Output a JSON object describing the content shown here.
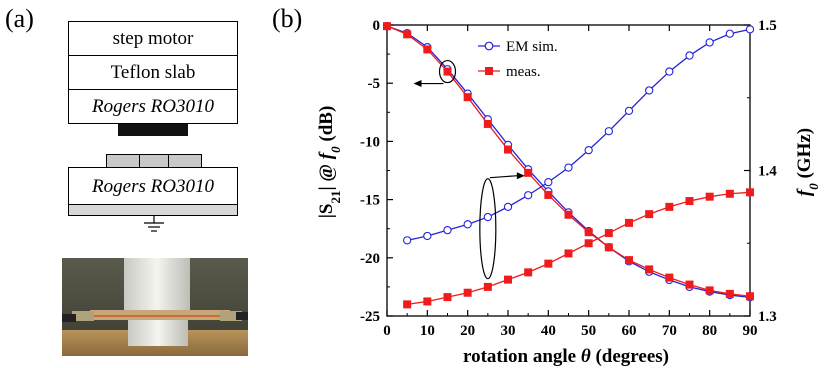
{
  "panels": {
    "a_label": "(a)",
    "b_label": "(b)"
  },
  "schematic": {
    "layers": [
      "step motor",
      "Teflon slab",
      "Rogers RO3010"
    ],
    "bottom_layer": "Rogers RO3010",
    "ground_icon": "ground-symbol-icon",
    "photo": "rotation-setup-photo"
  },
  "chart_data": {
    "type": "line",
    "xlabel": "rotation angle θ (degrees)",
    "xlabel_parts": {
      "main": "rotation angle ",
      "symbol": "θ",
      "unit": " (degrees)"
    },
    "ylabel_left_parts": {
      "pre": "|S",
      "sub": "21",
      "mid": "| @ ",
      "f": "f",
      "fsub": "0",
      "unit": " (dB)"
    },
    "ylabel_right_parts": {
      "f": "f",
      "fsub": "0",
      "unit": " (GHz)"
    },
    "xlim": [
      0,
      90
    ],
    "x_ticks": [
      0,
      10,
      20,
      30,
      40,
      50,
      60,
      70,
      80,
      90
    ],
    "ylim_left": [
      -25,
      0
    ],
    "y_ticks_left": [
      0,
      -5,
      -10,
      -15,
      -20,
      -25
    ],
    "ylim_right": [
      1.3,
      1.5
    ],
    "y_ticks_right": [
      1.3,
      1.4,
      1.5
    ],
    "legend": {
      "placement": "top-center",
      "entries": [
        "EM sim.",
        "meas."
      ]
    },
    "colors": {
      "sim": "#2424d8",
      "meas": "#ee1c1c"
    },
    "series": [
      {
        "name": "EM sim.",
        "axis": "left",
        "x": [
          0,
          5,
          10,
          15,
          20,
          25,
          30,
          35,
          40,
          45,
          50,
          55,
          60,
          65,
          70,
          75,
          80,
          85,
          90
        ],
        "y": [
          -0.1,
          -0.7,
          -1.9,
          -3.8,
          -5.9,
          -8.1,
          -10.3,
          -12.4,
          -14.3,
          -16.1,
          -17.7,
          -19.1,
          -20.3,
          -21.2,
          -21.9,
          -22.5,
          -22.9,
          -23.2,
          -23.4
        ]
      },
      {
        "name": "meas.",
        "axis": "left",
        "x": [
          0,
          5,
          10,
          15,
          20,
          25,
          30,
          35,
          40,
          45,
          50,
          55,
          60,
          65,
          70,
          75,
          80,
          85,
          90
        ],
        "y": [
          -0.1,
          -0.8,
          -2.1,
          -4.0,
          -6.2,
          -8.5,
          -10.7,
          -12.7,
          -14.6,
          -16.3,
          -17.8,
          -19.1,
          -20.2,
          -21.0,
          -21.7,
          -22.3,
          -22.8,
          -23.1,
          -23.3
        ]
      },
      {
        "name": "EM sim.",
        "axis": "right",
        "x": [
          5,
          10,
          15,
          20,
          25,
          30,
          35,
          40,
          45,
          50,
          55,
          60,
          65,
          70,
          75,
          80,
          85,
          90
        ],
        "y": [
          1.352,
          1.355,
          1.359,
          1.363,
          1.368,
          1.375,
          1.383,
          1.392,
          1.402,
          1.414,
          1.427,
          1.441,
          1.455,
          1.468,
          1.479,
          1.488,
          1.494,
          1.497
        ]
      },
      {
        "name": "meas.",
        "axis": "right",
        "x": [
          5,
          10,
          15,
          20,
          25,
          30,
          35,
          40,
          45,
          50,
          55,
          60,
          65,
          70,
          75,
          80,
          85,
          90
        ],
        "y": [
          1.308,
          1.31,
          1.313,
          1.316,
          1.32,
          1.325,
          1.33,
          1.336,
          1.343,
          1.35,
          1.357,
          1.364,
          1.37,
          1.375,
          1.379,
          1.382,
          1.384,
          1.385
        ]
      }
    ],
    "annotations": [
      {
        "type": "ellipse-with-arrow",
        "target_axis": "left",
        "center_x": 15,
        "center_y": -4,
        "arrow_direction": "left"
      },
      {
        "type": "ellipse-with-arrow",
        "target_axis": "right",
        "center_x": 25,
        "center_y": -17.5,
        "arrow_direction": "right"
      }
    ]
  }
}
